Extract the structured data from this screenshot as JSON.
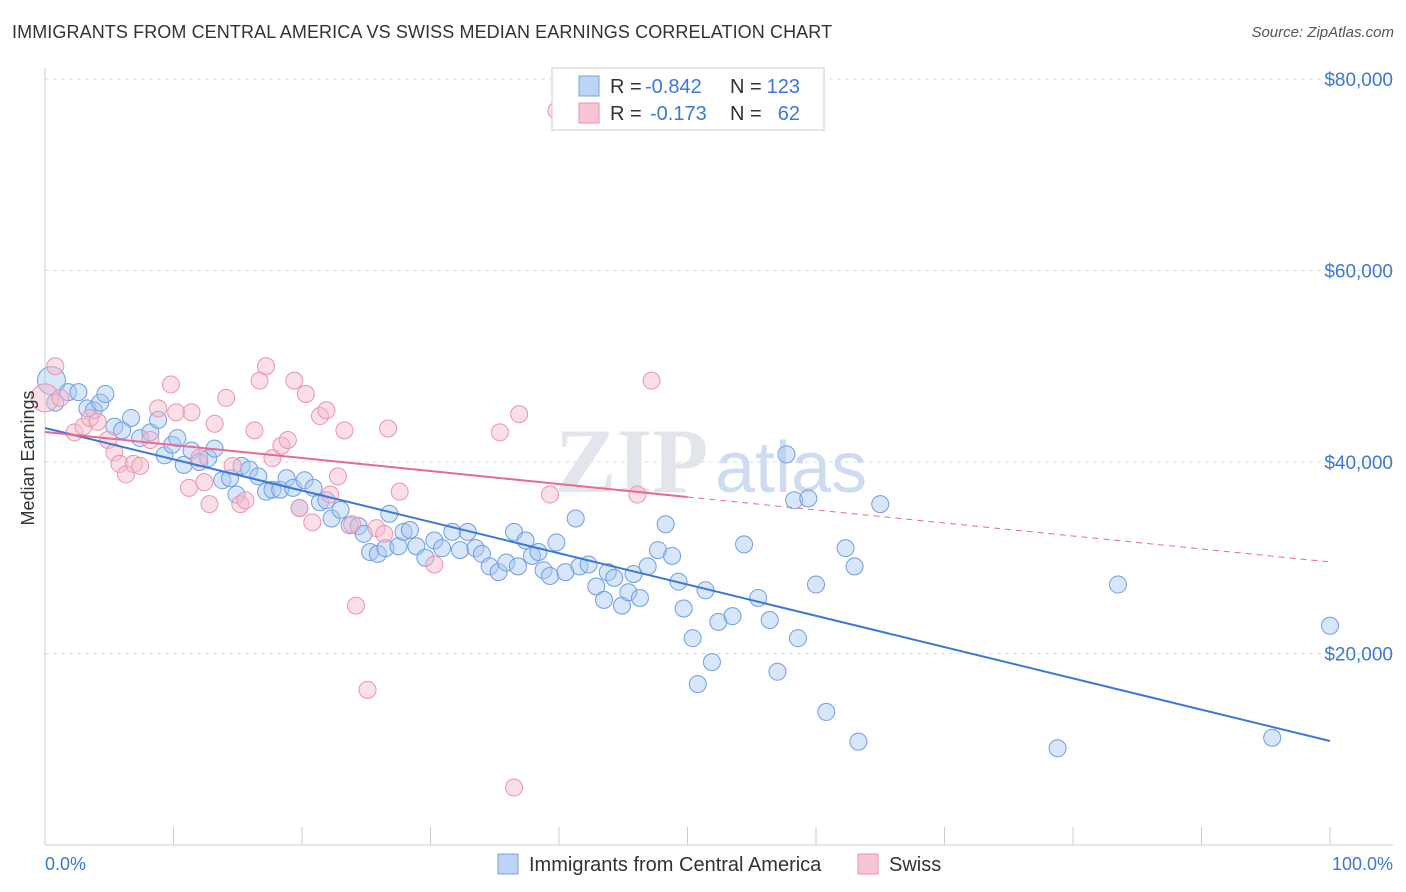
{
  "title": "IMMIGRANTS FROM CENTRAL AMERICA VS SWISS MEDIAN EARNINGS CORRELATION CHART",
  "source": "Source: ZipAtlas.com",
  "watermark": "ZIPatlas",
  "colors": {
    "blue": "#3b78d8",
    "blue_fill": "#a9c8f2",
    "pink": "#e76a93",
    "pink_fill": "#f6b7ca",
    "text_blue": "#3b78d8"
  },
  "chart_data": {
    "type": "scatter",
    "title": "IMMIGRANTS FROM CENTRAL AMERICA VS SWISS MEDIAN EARNINGS CORRELATION CHART",
    "xlabel": "",
    "ylabel": "Median Earnings",
    "xlim": [
      0,
      100
    ],
    "ylim": [
      0,
      80000
    ],
    "x_tick_labels": [
      "0.0%",
      "100.0%"
    ],
    "y_ticks": [
      {
        "value": 20000,
        "label": "$20,000"
      },
      {
        "value": 40000,
        "label": "$40,000"
      },
      {
        "value": 60000,
        "label": "$60,000"
      },
      {
        "value": 80000,
        "label": "$80,000"
      }
    ],
    "legend_stats": [
      {
        "r_label": "R =",
        "r": "-0.842",
        "n_label": "N =",
        "n": "123"
      },
      {
        "r_label": "R =",
        "r": "-0.173",
        "n_label": "N =",
        "n": "62"
      }
    ],
    "series": [
      {
        "name": "Immigrants from Central America",
        "color": "#3b78d8",
        "trend": {
          "x": [
            0,
            100
          ],
          "y": [
            43550,
            10860
          ],
          "solid_until": 100
        },
        "points": [
          [
            0.5,
            48500
          ],
          [
            0.8,
            46200
          ],
          [
            1.8,
            47300
          ],
          [
            2.6,
            47300
          ],
          [
            3.3,
            45600
          ],
          [
            3.8,
            45400
          ],
          [
            4.3,
            46200
          ],
          [
            4.7,
            47100
          ],
          [
            5.4,
            43700
          ],
          [
            6.0,
            43300
          ],
          [
            6.7,
            44600
          ],
          [
            7.4,
            42500
          ],
          [
            8.2,
            43100
          ],
          [
            8.8,
            44400
          ],
          [
            9.3,
            40700
          ],
          [
            9.9,
            41800
          ],
          [
            10.3,
            42500
          ],
          [
            10.8,
            39700
          ],
          [
            11.4,
            41200
          ],
          [
            12.0,
            40000
          ],
          [
            12.7,
            40400
          ],
          [
            13.2,
            41400
          ],
          [
            13.8,
            38100
          ],
          [
            14.4,
            38300
          ],
          [
            14.9,
            36600
          ],
          [
            15.3,
            39600
          ],
          [
            15.9,
            39200
          ],
          [
            16.6,
            38500
          ],
          [
            17.2,
            36900
          ],
          [
            17.7,
            37100
          ],
          [
            18.3,
            37100
          ],
          [
            18.8,
            38300
          ],
          [
            19.3,
            37300
          ],
          [
            19.8,
            35200
          ],
          [
            20.2,
            38100
          ],
          [
            20.9,
            37300
          ],
          [
            21.4,
            35800
          ],
          [
            21.9,
            36000
          ],
          [
            22.3,
            34100
          ],
          [
            23.0,
            35000
          ],
          [
            23.7,
            33400
          ],
          [
            24.4,
            33300
          ],
          [
            24.8,
            32500
          ],
          [
            25.3,
            30600
          ],
          [
            25.9,
            30400
          ],
          [
            26.5,
            31000
          ],
          [
            26.8,
            34600
          ],
          [
            27.5,
            31200
          ],
          [
            27.9,
            32700
          ],
          [
            28.4,
            32900
          ],
          [
            28.9,
            31200
          ],
          [
            29.6,
            30000
          ],
          [
            30.3,
            31800
          ],
          [
            30.9,
            31000
          ],
          [
            31.7,
            32700
          ],
          [
            32.3,
            30800
          ],
          [
            32.9,
            32700
          ],
          [
            33.5,
            31000
          ],
          [
            34.0,
            30400
          ],
          [
            34.6,
            29100
          ],
          [
            35.3,
            28500
          ],
          [
            35.9,
            29500
          ],
          [
            36.5,
            32700
          ],
          [
            36.8,
            29100
          ],
          [
            37.4,
            31800
          ],
          [
            37.9,
            30200
          ],
          [
            38.4,
            30600
          ],
          [
            38.8,
            28700
          ],
          [
            39.3,
            28100
          ],
          [
            39.8,
            31600
          ],
          [
            40.5,
            28500
          ],
          [
            41.3,
            34100
          ],
          [
            41.6,
            29100
          ],
          [
            42.3,
            29300
          ],
          [
            42.9,
            27000
          ],
          [
            43.5,
            25600
          ],
          [
            43.8,
            28500
          ],
          [
            44.3,
            27900
          ],
          [
            44.9,
            25000
          ],
          [
            45.4,
            26400
          ],
          [
            45.8,
            28300
          ],
          [
            46.3,
            25800
          ],
          [
            46.9,
            29100
          ],
          [
            47.7,
            30800
          ],
          [
            48.3,
            33500
          ],
          [
            48.8,
            30200
          ],
          [
            49.3,
            27500
          ],
          [
            49.7,
            24700
          ],
          [
            50.4,
            21600
          ],
          [
            50.8,
            16800
          ],
          [
            51.4,
            26600
          ],
          [
            51.9,
            19100
          ],
          [
            52.4,
            23300
          ],
          [
            53.5,
            23900
          ],
          [
            54.4,
            31400
          ],
          [
            55.5,
            25800
          ],
          [
            56.4,
            23500
          ],
          [
            57.0,
            18100
          ],
          [
            57.7,
            40800
          ],
          [
            58.3,
            36000
          ],
          [
            58.6,
            21600
          ],
          [
            59.4,
            36200
          ],
          [
            60.0,
            27200
          ],
          [
            60.8,
            13900
          ],
          [
            62.3,
            31000
          ],
          [
            63.0,
            29100
          ],
          [
            63.3,
            10800
          ],
          [
            65.0,
            35600
          ],
          [
            78.8,
            10100
          ],
          [
            83.5,
            27200
          ],
          [
            95.5,
            11200
          ],
          [
            100,
            22900
          ]
        ]
      },
      {
        "name": "Swiss",
        "color": "#e76a93",
        "trend": {
          "x": [
            0,
            100
          ],
          "y": [
            43130,
            29560
          ],
          "solid_until": 50
        },
        "points": [
          [
            0,
            46700
          ],
          [
            0.8,
            50000
          ],
          [
            1.2,
            46700
          ],
          [
            2.3,
            43100
          ],
          [
            3.0,
            43700
          ],
          [
            3.5,
            44600
          ],
          [
            4.1,
            44200
          ],
          [
            4.9,
            42300
          ],
          [
            5.4,
            41000
          ],
          [
            5.8,
            39800
          ],
          [
            6.3,
            38700
          ],
          [
            6.9,
            39800
          ],
          [
            7.4,
            39600
          ],
          [
            8.2,
            42300
          ],
          [
            8.8,
            45600
          ],
          [
            9.8,
            48100
          ],
          [
            10.2,
            45200
          ],
          [
            11.2,
            37300
          ],
          [
            11.4,
            45200
          ],
          [
            12.0,
            40400
          ],
          [
            12.4,
            37900
          ],
          [
            12.8,
            35600
          ],
          [
            13.2,
            44000
          ],
          [
            14.1,
            46700
          ],
          [
            14.6,
            39600
          ],
          [
            15.2,
            35600
          ],
          [
            15.6,
            36000
          ],
          [
            16.3,
            43300
          ],
          [
            16.7,
            48500
          ],
          [
            17.2,
            50000
          ],
          [
            17.7,
            40400
          ],
          [
            18.4,
            41700
          ],
          [
            18.9,
            42300
          ],
          [
            19.4,
            48500
          ],
          [
            19.8,
            35200
          ],
          [
            20.3,
            47100
          ],
          [
            20.8,
            33700
          ],
          [
            21.4,
            44800
          ],
          [
            21.9,
            45400
          ],
          [
            22.2,
            36600
          ],
          [
            22.8,
            38500
          ],
          [
            23.3,
            43300
          ],
          [
            23.9,
            33500
          ],
          [
            24.2,
            25000
          ],
          [
            25.1,
            16200
          ],
          [
            25.8,
            33100
          ],
          [
            26.4,
            32500
          ],
          [
            26.7,
            43500
          ],
          [
            27.6,
            36900
          ],
          [
            30.3,
            29300
          ],
          [
            35.4,
            43100
          ],
          [
            36.5,
            6000
          ],
          [
            36.9,
            45000
          ],
          [
            39.3,
            36600
          ],
          [
            39.8,
            76700
          ],
          [
            46.1,
            36600
          ],
          [
            47.2,
            48500
          ]
        ]
      }
    ]
  }
}
